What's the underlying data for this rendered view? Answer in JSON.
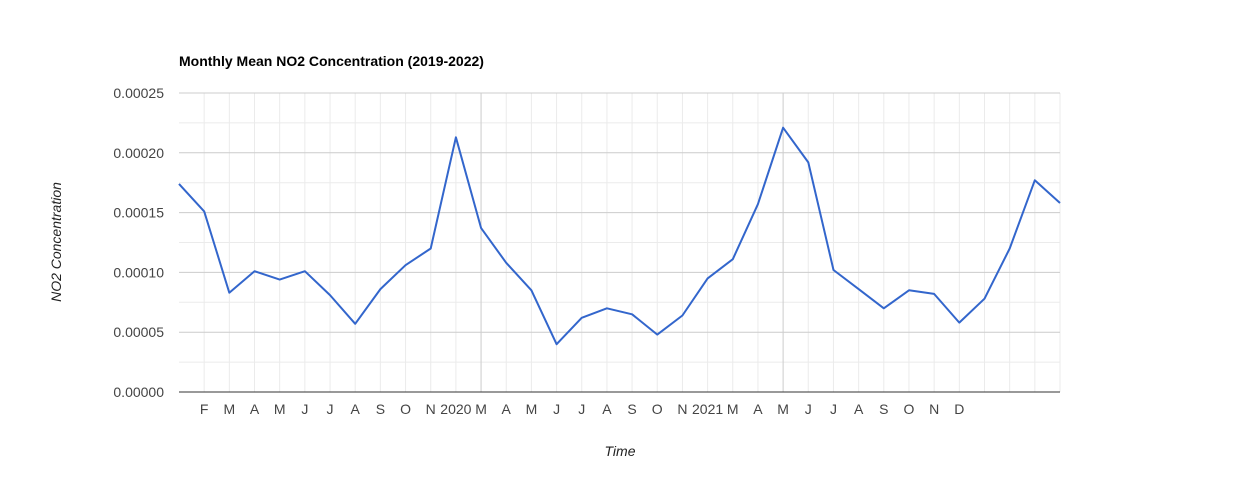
{
  "chart_data": {
    "type": "line",
    "title": "Monthly Mean NO2 Concentration (2019-2022)",
    "xlabel": "Time",
    "ylabel": "NO2 Concentration",
    "ylim": [
      0,
      0.00025
    ],
    "y_ticks": [
      "0.00000",
      "0.00005",
      "0.00010",
      "0.00015",
      "0.00020",
      "0.00025"
    ],
    "x_tick_labels": [
      "F",
      "M",
      "A",
      "M",
      "J",
      "J",
      "A",
      "S",
      "O",
      "N",
      "2020",
      "M",
      "A",
      "M",
      "J",
      "J",
      "A",
      "S",
      "O",
      "N",
      "2021",
      "M",
      "A",
      "M",
      "J",
      "J",
      "A",
      "S",
      "O",
      "N",
      "D"
    ],
    "grid": true,
    "legend": "none",
    "series": [
      {
        "color": "#3366cc",
        "x": [
          "2019-01",
          "2019-02",
          "2019-03",
          "2019-04",
          "2019-05",
          "2019-06",
          "2019-07",
          "2019-08",
          "2019-09",
          "2019-10",
          "2019-11",
          "2019-12",
          "2020-01",
          "2020-02",
          "2020-03",
          "2020-04",
          "2020-05",
          "2020-06",
          "2020-07",
          "2020-08",
          "2020-09",
          "2020-10",
          "2020-11",
          "2020-12",
          "2021-01",
          "2021-02",
          "2021-03",
          "2021-04",
          "2021-05",
          "2021-06",
          "2021-07",
          "2021-08",
          "2021-09",
          "2021-10",
          "2021-11",
          "2021-12"
        ],
        "values": [
          0.000174,
          0.000151,
          8.3e-05,
          0.000101,
          9.4e-05,
          0.000101,
          8.1e-05,
          5.7e-05,
          8.6e-05,
          0.000106,
          0.00012,
          0.000213,
          0.000137,
          0.000108,
          8.5e-05,
          4e-05,
          6.2e-05,
          7e-05,
          6.5e-05,
          4.8e-05,
          6.4e-05,
          9.5e-05,
          0.000111,
          0.000157,
          0.000221,
          0.000192,
          0.000102,
          8.6e-05,
          7e-05,
          8.5e-05,
          8.2e-05,
          5.8e-05,
          7.8e-05,
          0.00012,
          0.000177,
          0.000158
        ]
      }
    ]
  }
}
